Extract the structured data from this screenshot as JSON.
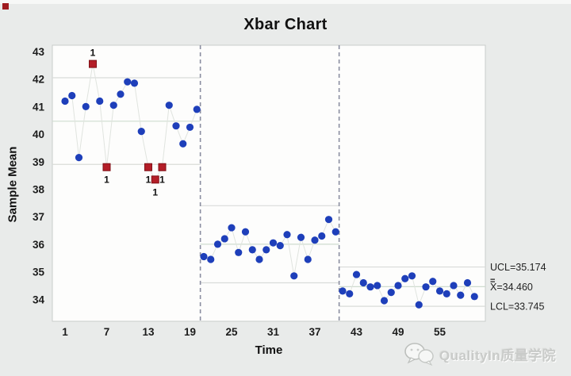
{
  "chart_data": {
    "type": "scatter",
    "subtype": "xbar-control-chart",
    "title": "Xbar Chart",
    "xlabel": "Time",
    "ylabel": "Sample Mean",
    "ylim": [
      33.2,
      43.25
    ],
    "y_ticks": [
      43,
      42,
      41,
      40,
      39,
      38,
      37,
      36,
      35,
      34
    ],
    "x_ticks": [
      1,
      7,
      13,
      19,
      25,
      31,
      37,
      43,
      49,
      55
    ],
    "grid": false,
    "flag_label": "1",
    "stages": [
      {
        "name": "stage-1",
        "start_t": 1,
        "ucl": 42.05,
        "center": 40.47,
        "lcl": 38.9,
        "values": [
          41.2,
          41.4,
          39.15,
          41.0,
          42.55,
          41.2,
          38.8,
          41.05,
          41.45,
          41.9,
          41.85,
          40.1,
          38.8,
          38.35,
          38.8,
          41.05,
          40.3,
          39.65,
          40.25,
          40.9
        ],
        "out_of_control": [
          {
            "t": 5,
            "flag_side": "above"
          },
          {
            "t": 7,
            "flag_side": "below"
          },
          {
            "t": 13,
            "flag_side": "below"
          },
          {
            "t": 14,
            "flag_side": "below"
          },
          {
            "t": 15,
            "flag_side": "below"
          }
        ]
      },
      {
        "name": "stage-2",
        "start_t": 21,
        "ucl": 37.4,
        "center": 36.0,
        "lcl": 34.6,
        "values": [
          35.55,
          35.45,
          36.0,
          36.2,
          36.6,
          35.7,
          36.45,
          35.8,
          35.45,
          35.8,
          36.05,
          35.95,
          36.35,
          34.85,
          36.25,
          35.45,
          36.15,
          36.3,
          36.9,
          36.45
        ],
        "out_of_control": []
      },
      {
        "name": "stage-3",
        "start_t": 41,
        "ucl": 35.174,
        "center": 34.46,
        "lcl": 33.745,
        "values": [
          34.3,
          34.2,
          34.9,
          34.6,
          34.45,
          34.5,
          33.95,
          34.25,
          34.5,
          34.75,
          34.85,
          33.8,
          34.45,
          34.65,
          34.3,
          34.2,
          34.5,
          34.15,
          34.6,
          34.1
        ],
        "out_of_control": []
      }
    ],
    "stage_dividers_t": [
      20.5,
      40.5
    ],
    "annotations": [
      {
        "id": "ucl",
        "text": "UCL=35.174",
        "value": 35.174,
        "double_bar": false
      },
      {
        "id": "xbar",
        "text": "X=34.460",
        "value": 34.46,
        "double_bar": true
      },
      {
        "id": "lcl",
        "text": "LCL=33.745",
        "value": 33.745,
        "double_bar": false
      }
    ],
    "colors": {
      "point_blue": "#1e3fba",
      "oc_red": "#b41e28",
      "oc_red_border": "#811117",
      "series_line": "#e0e4df",
      "limit_line": "#d9dcd9",
      "center_line": "#cfdccf",
      "divider": "#8a8da0",
      "plot_bg": "#fdfdfc",
      "plot_border": "#c9cdcb",
      "tick_text": "#1c1c1c",
      "annotation_text": "#222222"
    }
  },
  "watermark": {
    "text": "QualityIn质量学院",
    "icon": "wechat-icon"
  }
}
